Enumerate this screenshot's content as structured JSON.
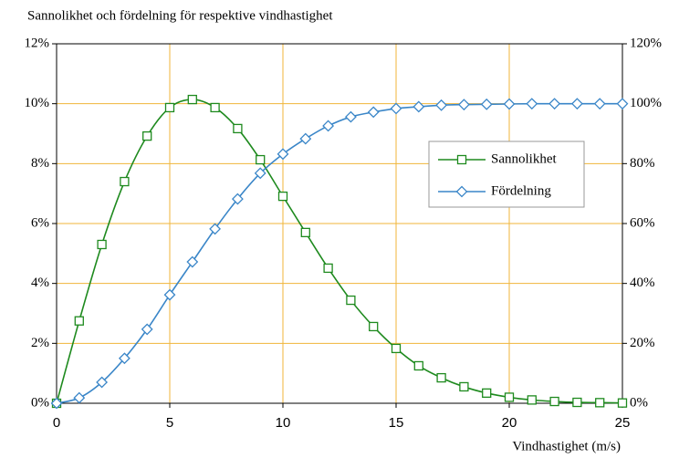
{
  "chart_data": {
    "type": "line",
    "title": "Sannolikhet och fördelning för respektive vindhastighet",
    "x_label": "Vindhastighet (m/s)",
    "x": [
      0,
      1,
      2,
      3,
      4,
      5,
      6,
      7,
      8,
      9,
      10,
      11,
      12,
      13,
      14,
      15,
      16,
      17,
      18,
      19,
      20,
      21,
      22,
      23,
      24,
      25
    ],
    "xlim": [
      0,
      25
    ],
    "xticks": [
      0,
      5,
      10,
      15,
      20,
      25
    ],
    "ylim": [
      0,
      12
    ],
    "yticks": [
      {
        "value": 0,
        "label": "0%"
      },
      {
        "value": 2,
        "label": "2%"
      },
      {
        "value": 4,
        "label": "4%"
      },
      {
        "value": 6,
        "label": "6%"
      },
      {
        "value": 8,
        "label": "8%"
      },
      {
        "value": 10,
        "label": "10%"
      },
      {
        "value": 12,
        "label": "12%"
      }
    ],
    "y2lim": [
      0,
      120
    ],
    "y2ticks": [
      {
        "value": 0,
        "label": "0%"
      },
      {
        "value": 20,
        "label": "20%"
      },
      {
        "value": 40,
        "label": "40%"
      },
      {
        "value": 60,
        "label": "60%"
      },
      {
        "value": 80,
        "label": "80%"
      },
      {
        "value": 100,
        "label": "100%"
      },
      {
        "value": 120,
        "label": "120%"
      }
    ],
    "grid": true,
    "grid_color": "#f0b53a",
    "series": [
      {
        "name": "Sannolikhet",
        "color": "#1e8a1e",
        "marker": "square",
        "values": [
          0,
          2.75,
          5.3,
          7.4,
          8.92,
          9.87,
          10.14,
          9.87,
          9.17,
          8.13,
          6.91,
          5.7,
          4.51,
          3.44,
          2.56,
          1.83,
          1.25,
          0.85,
          0.55,
          0.34,
          0.2,
          0.11,
          0.06,
          0.03,
          0.02,
          0.01
        ]
      },
      {
        "name": "Fördelning",
        "color": "#3a86c8",
        "marker": "diamond",
        "axis": "y2",
        "values": [
          0,
          1.8,
          7,
          15,
          24.7,
          36.2,
          47.2,
          58.2,
          68.2,
          76.8,
          83.2,
          88.3,
          92.6,
          95.6,
          97.2,
          98.4,
          99,
          99.5,
          99.7,
          99.8,
          99.9,
          100,
          100,
          100,
          100,
          100
        ]
      }
    ]
  }
}
